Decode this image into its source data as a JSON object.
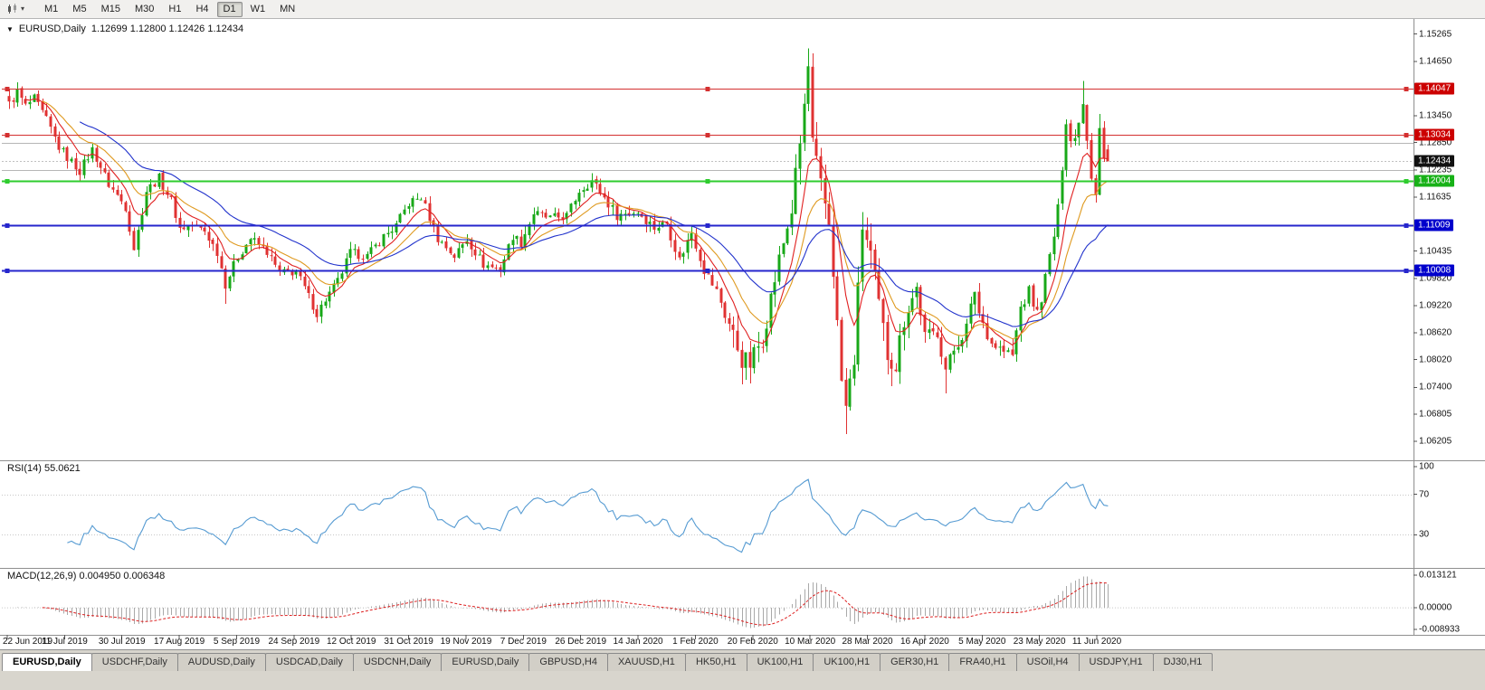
{
  "toolbar": {
    "timeframes": [
      "M1",
      "M5",
      "M15",
      "M30",
      "H1",
      "H4",
      "D1",
      "W1",
      "MN"
    ],
    "active_timeframe": "D1"
  },
  "chart_data": {
    "type": "candlestick",
    "symbol": "EURUSD",
    "period": "Daily",
    "title": "EURUSD,Daily",
    "ohlc_display": "1.12699 1.12800 1.12426 1.12434",
    "current_bar": {
      "open": 1.12699,
      "high": 1.128,
      "low": 1.12426,
      "close": 1.12434
    },
    "bars_total": 265,
    "y_range": [
      1.059,
      1.155
    ],
    "candle_colors": {
      "up": "#18a818",
      "down": "#e03232"
    },
    "price_axis_labels": [
      "1.15265",
      "1.14650",
      "1.13450",
      "1.12850",
      "1.12235",
      "1.11635",
      "1.10435",
      "1.09820",
      "1.09220",
      "1.08620",
      "1.08020",
      "1.07400",
      "1.06805",
      "1.06205"
    ],
    "current_price_tag": {
      "label": "1.12434",
      "price": 1.12434,
      "bg": "#111111"
    },
    "date_labels": [
      "22 Jun 2019",
      "11 Jul 2019",
      "30 Jul 2019",
      "17 Aug 2019",
      "5 Sep 2019",
      "24 Sep 2019",
      "12 Oct 2019",
      "31 Oct 2019",
      "19 Nov 2019",
      "7 Dec 2019",
      "26 Dec 2019",
      "14 Jan 2020",
      "1 Feb 2020",
      "20 Feb 2020",
      "10 Mar 2020",
      "28 Mar 2020",
      "16 Apr 2020",
      "5 May 2020",
      "23 May 2020",
      "11 Jun 2020"
    ],
    "horizontal_lines": [
      {
        "price": 1.14047,
        "color": "#d43030",
        "width": 1,
        "label": "1.14047",
        "label_bg": "#cc0000"
      },
      {
        "price": 1.13034,
        "color": "#d43030",
        "width": 1,
        "label": "1.13034",
        "label_bg": "#cc0000"
      },
      {
        "price": 1.1285,
        "color": "#b6b6b6",
        "width": 1
      },
      {
        "price": 1.12235,
        "color": "#b6b6b6",
        "width": 1
      },
      {
        "price": 1.12004,
        "color": "#2ecc2e",
        "width": 2,
        "label": "1.12004",
        "label_bg": "#17b117"
      },
      {
        "price": 1.11009,
        "color": "#2626cc",
        "width": 2,
        "label": "1.11009",
        "label_bg": "#0000cc"
      },
      {
        "price": 1.10008,
        "color": "#2626cc",
        "width": 2,
        "label": "1.10008",
        "label_bg": "#0000cc"
      }
    ],
    "moving_averages": [
      {
        "period": 8,
        "color": "#e02020"
      },
      {
        "period": 16,
        "color": "#df9a20"
      },
      {
        "period": 34,
        "color": "#2233cc"
      }
    ],
    "price_anchors": [
      [
        0,
        1.137
      ],
      [
        2,
        1.1398
      ],
      [
        4,
        1.1366
      ],
      [
        6,
        1.1382
      ],
      [
        9,
        1.1335
      ],
      [
        12,
        1.1275
      ],
      [
        14,
        1.1252
      ],
      [
        17,
        1.1222
      ],
      [
        20,
        1.127
      ],
      [
        24,
        1.1192
      ],
      [
        28,
        1.1142
      ],
      [
        30,
        1.105
      ],
      [
        31,
        1.1088
      ],
      [
        33,
        1.1178
      ],
      [
        36,
        1.1206
      ],
      [
        39,
        1.1156
      ],
      [
        41,
        1.1094
      ],
      [
        44,
        1.1102
      ],
      [
        47,
        1.1088
      ],
      [
        50,
        1.1042
      ],
      [
        52,
        1.097
      ],
      [
        55,
        1.1032
      ],
      [
        58,
        1.1072
      ],
      [
        62,
        1.1042
      ],
      [
        65,
        1.0994
      ],
      [
        69,
        1.0998
      ],
      [
        72,
        1.0942
      ],
      [
        74,
        1.0904
      ],
      [
        76,
        1.0936
      ],
      [
        79,
        1.0976
      ],
      [
        82,
        1.104
      ],
      [
        86,
        1.1032
      ],
      [
        90,
        1.1076
      ],
      [
        93,
        1.11
      ],
      [
        96,
        1.115
      ],
      [
        99,
        1.1164
      ],
      [
        103,
        1.1072
      ],
      [
        107,
        1.1032
      ],
      [
        110,
        1.107
      ],
      [
        114,
        1.1014
      ],
      [
        118,
        1.1002
      ],
      [
        121,
        1.1078
      ],
      [
        123,
        1.1062
      ],
      [
        126,
        1.1128
      ],
      [
        130,
        1.1116
      ],
      [
        134,
        1.1122
      ],
      [
        137,
        1.1178
      ],
      [
        140,
        1.12
      ],
      [
        143,
        1.1162
      ],
      [
        146,
        1.1124
      ],
      [
        151,
        1.1132
      ],
      [
        155,
        1.1096
      ],
      [
        158,
        1.1106
      ],
      [
        161,
        1.1024
      ],
      [
        164,
        1.1086
      ],
      [
        167,
        1.1002
      ],
      [
        170,
        1.0954
      ],
      [
        173,
        1.0882
      ],
      [
        176,
        1.0804
      ],
      [
        178,
        1.0792
      ],
      [
        181,
        1.0852
      ],
      [
        184,
        1.0982
      ],
      [
        186,
        1.1062
      ],
      [
        188,
        1.1136
      ],
      [
        190,
        1.1282
      ],
      [
        192,
        1.1451
      ],
      [
        193,
        1.1282
      ],
      [
        195,
        1.1186
      ],
      [
        197,
        1.1108
      ],
      [
        198,
        1.1002
      ],
      [
        200,
        1.0754
      ],
      [
        201,
        1.0694
      ],
      [
        203,
        1.0804
      ],
      [
        205,
        1.11
      ],
      [
        207,
        1.1034
      ],
      [
        209,
        1.0922
      ],
      [
        211,
        1.0814
      ],
      [
        213,
        1.0792
      ],
      [
        215,
        1.0894
      ],
      [
        218,
        1.0962
      ],
      [
        220,
        1.0854
      ],
      [
        223,
        1.0864
      ],
      [
        225,
        1.078
      ],
      [
        227,
        1.0824
      ],
      [
        230,
        1.0874
      ],
      [
        232,
        1.0958
      ],
      [
        233,
        1.0906
      ],
      [
        236,
        1.084
      ],
      [
        239,
        1.082
      ],
      [
        241,
        1.081
      ],
      [
        243,
        1.0918
      ],
      [
        245,
        1.0952
      ],
      [
        247,
        1.0904
      ],
      [
        249,
        1.0982
      ],
      [
        251,
        1.1078
      ],
      [
        252,
        1.1135
      ],
      [
        253,
        1.1234
      ],
      [
        254,
        1.1337
      ],
      [
        255,
        1.129
      ],
      [
        256,
        1.1293
      ],
      [
        257,
        1.134
      ],
      [
        258,
        1.1373
      ],
      [
        259,
        1.1298
      ],
      [
        260,
        1.1212
      ],
      [
        261,
        1.1177
      ],
      [
        262,
        1.1323
      ],
      [
        263,
        1.1251
      ],
      [
        264,
        1.1243
      ]
    ],
    "spikes": [
      {
        "i": 2,
        "high": 1.1412
      },
      {
        "i": 52,
        "low": 1.0926
      },
      {
        "i": 74,
        "low": 1.0885
      },
      {
        "i": 192,
        "high": 1.1495
      },
      {
        "i": 201,
        "low": 1.0636
      },
      {
        "i": 225,
        "low": 1.0727
      },
      {
        "i": 258,
        "high": 1.1422
      },
      {
        "i": 261,
        "low": 1.1168
      },
      {
        "i": 262,
        "high": 1.1349
      }
    ],
    "volatility_spans": [
      [
        0,
        139,
        0.8
      ],
      [
        140,
        171,
        0.9
      ],
      [
        172,
        215,
        1.9
      ],
      [
        216,
        250,
        1.2
      ],
      [
        251,
        264,
        1.0
      ]
    ],
    "indicators": {
      "rsi": {
        "label": "RSI(14) 55.0621",
        "period": 14,
        "current_value": "55.0621",
        "levels": [
          70,
          30
        ],
        "scale_labels": [
          "100",
          "70",
          "30"
        ],
        "line_color": "#569bd2"
      },
      "macd": {
        "label": "MACD(12,26,9) 0.004950 0.006348",
        "fast": 12,
        "slow": 26,
        "signal": 9,
        "values_display": [
          "0.004950",
          "0.006348"
        ],
        "scale_labels": [
          "0.013121",
          "0.00000",
          "-0.008933"
        ],
        "scale_max": 0.013121,
        "scale_min": -0.008933,
        "histogram_color": "#a9a9a9",
        "signal_color": "#dd2020"
      }
    }
  },
  "tabs": {
    "items": [
      {
        "label": "EURUSD,Daily",
        "active": true
      },
      {
        "label": "USDCHF,Daily"
      },
      {
        "label": "AUDUSD,Daily"
      },
      {
        "label": "USDCAD,Daily"
      },
      {
        "label": "USDCNH,Daily"
      },
      {
        "label": "EURUSD,Daily"
      },
      {
        "label": "GBPUSD,H4"
      },
      {
        "label": "XAUUSD,H1"
      },
      {
        "label": "HK50,H1"
      },
      {
        "label": "UK100,H1"
      },
      {
        "label": "UK100,H1"
      },
      {
        "label": "GER30,H1"
      },
      {
        "label": "FRA40,H1"
      },
      {
        "label": "USOil,H4"
      },
      {
        "label": "USDJPY,H1"
      },
      {
        "label": "DJ30,H1"
      }
    ]
  }
}
